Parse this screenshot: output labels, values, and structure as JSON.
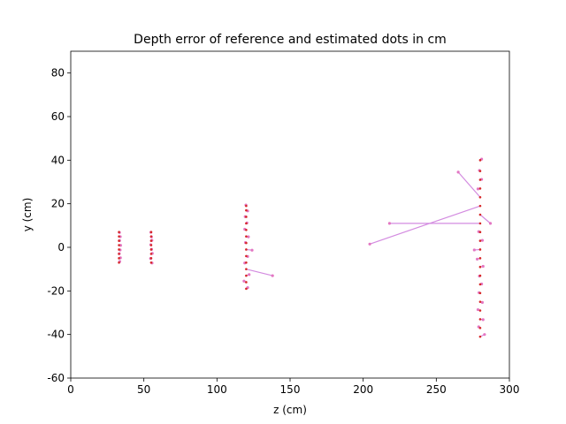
{
  "chart_data": {
    "type": "scatter",
    "title": "Depth error of reference and estimated dots in cm",
    "xlabel": "z (cm)",
    "ylabel": "y (cm)",
    "xlim": [
      0,
      300
    ],
    "ylim": [
      -60,
      90
    ],
    "xticks": [
      0,
      50,
      100,
      150,
      200,
      250,
      300
    ],
    "yticks": [
      -60,
      -40,
      -20,
      0,
      20,
      40,
      60,
      80
    ],
    "grid": false,
    "colors": {
      "reference": "#d62728",
      "estimated": "#e377c2",
      "error_line": "#d38be0"
    },
    "series": [
      {
        "points": [
          [
            33,
            -7
          ],
          [
            33,
            -5
          ],
          [
            33,
            -3
          ],
          [
            33,
            -1
          ],
          [
            33,
            1
          ],
          [
            33,
            3
          ],
          [
            33,
            5
          ],
          [
            33,
            7
          ],
          [
            55,
            -7
          ],
          [
            55,
            -5
          ],
          [
            55,
            -3
          ],
          [
            55,
            -1
          ],
          [
            55,
            1
          ],
          [
            55,
            3
          ],
          [
            55,
            5
          ],
          [
            55,
            7
          ],
          [
            120,
            -19
          ],
          [
            120,
            -16
          ],
          [
            120,
            -13
          ],
          [
            120,
            -10
          ],
          [
            120,
            -7
          ],
          [
            120,
            -4
          ],
          [
            120,
            -1
          ],
          [
            120,
            2
          ],
          [
            120,
            5
          ],
          [
            120,
            8
          ],
          [
            120,
            11
          ],
          [
            120,
            14
          ],
          [
            120,
            17
          ],
          [
            120,
            19
          ],
          [
            280,
            -41
          ],
          [
            280,
            -37
          ],
          [
            280,
            -33
          ],
          [
            280,
            -29
          ],
          [
            280,
            -25
          ],
          [
            280,
            -21
          ],
          [
            280,
            -17
          ],
          [
            280,
            -13
          ],
          [
            280,
            -9
          ],
          [
            280,
            -5
          ],
          [
            280,
            -1
          ],
          [
            280,
            3
          ],
          [
            280,
            7
          ],
          [
            280,
            11
          ],
          [
            280,
            15
          ],
          [
            280,
            19
          ],
          [
            280,
            23
          ],
          [
            280,
            27
          ],
          [
            280,
            31
          ],
          [
            280,
            35
          ],
          [
            280,
            40
          ]
        ]
      },
      {
        "points": [
          [
            33.5,
            -6.5
          ],
          [
            34,
            -4.8
          ],
          [
            33.2,
            -2.9
          ],
          [
            33.8,
            -1.2
          ],
          [
            34.1,
            0.9
          ],
          [
            33.4,
            3.1
          ],
          [
            33.9,
            4.9
          ],
          [
            33.3,
            6.8
          ],
          [
            55.6,
            -7.2
          ],
          [
            54.6,
            -5.1
          ],
          [
            55.8,
            -2.8
          ],
          [
            55.3,
            -0.9
          ],
          [
            54.7,
            1.2
          ],
          [
            55.5,
            3.2
          ],
          [
            55.2,
            4.8
          ],
          [
            54.8,
            6.9
          ],
          [
            121,
            -18.5
          ],
          [
            118.5,
            -15.5
          ],
          [
            122,
            -12.5
          ],
          [
            138,
            -13
          ],
          [
            119,
            -7.2
          ],
          [
            121,
            -4.2
          ],
          [
            124,
            -1.3
          ],
          [
            119.5,
            2.2
          ],
          [
            121.5,
            4.8
          ],
          [
            119,
            8.3
          ],
          [
            120.5,
            11.2
          ],
          [
            119.3,
            14.1
          ],
          [
            121,
            16.7
          ],
          [
            119.8,
            19.4
          ],
          [
            283,
            -40
          ],
          [
            279,
            -36.5
          ],
          [
            282,
            -33.2
          ],
          [
            278.5,
            -28.6
          ],
          [
            281.5,
            -25.3
          ],
          [
            279.2,
            -20.8
          ],
          [
            281,
            -16.8
          ],
          [
            279.5,
            -13.2
          ],
          [
            282,
            -8.7
          ],
          [
            278,
            -5.4
          ],
          [
            276,
            -1.2
          ],
          [
            281.5,
            3.2
          ],
          [
            279,
            7.2
          ],
          [
            218,
            11
          ],
          [
            287,
            11
          ],
          [
            204.5,
            1.5
          ],
          [
            265,
            34.5
          ],
          [
            278.5,
            26.8
          ],
          [
            281,
            31.2
          ],
          [
            279.5,
            35.3
          ],
          [
            281,
            40.5
          ]
        ]
      }
    ]
  }
}
